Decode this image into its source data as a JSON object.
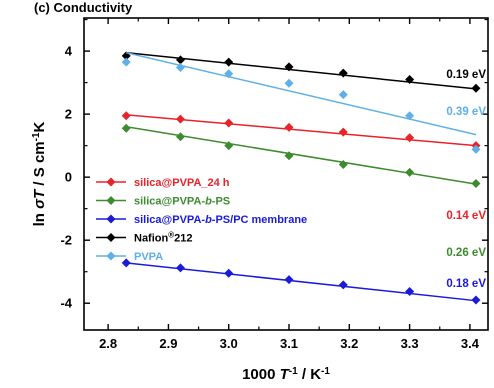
{
  "panel": {
    "label": "(c) Conductivity"
  },
  "chart_data": {
    "type": "scatter",
    "title": "",
    "xlabel": {
      "prefix": "1000 ",
      "var": "T",
      "sup": "-1",
      "suffix": " / K",
      "sup2": "-1"
    },
    "ylabel": {
      "prefix": "ln ",
      "var": "σT",
      "suffix": " / S cm",
      "sup": "-1",
      "suffix2": "K"
    },
    "xlim": [
      2.76,
      3.43
    ],
    "ylim": [
      -4.85,
      5.05
    ],
    "xticks": [
      "2.8",
      "2.9",
      "3.0",
      "3.1",
      "3.2",
      "3.3",
      "3.4"
    ],
    "xtick_values": [
      2.8,
      2.9,
      3.0,
      3.1,
      3.2,
      3.3,
      3.4
    ],
    "yticks": [
      "-4",
      "-2",
      "0",
      "2",
      "4"
    ],
    "ytick_values": [
      -4,
      -2,
      0,
      2,
      4
    ],
    "grid": false,
    "legend_position": "middle-left",
    "series": [
      {
        "name": "silica@PVPA_24 h",
        "color": "#e8232a",
        "marker": "diamond",
        "x": [
          2.83,
          2.92,
          3.0,
          3.1,
          3.19,
          3.3,
          3.41
        ],
        "y": [
          1.95,
          1.84,
          1.72,
          1.58,
          1.43,
          1.25,
          1.0
        ],
        "fit": {
          "x": [
            2.83,
            3.41
          ],
          "y": [
            1.98,
            1.0
          ]
        },
        "ea_label": "0.14 eV"
      },
      {
        "name": "silica@PVPA-b-PS",
        "name_parts": [
          [
            "silica@PVPA-",
            false
          ],
          [
            "b",
            true
          ],
          [
            "-PS",
            false
          ]
        ],
        "color": "#3d8b2e",
        "marker": "diamond",
        "x": [
          2.83,
          2.92,
          3.0,
          3.1,
          3.19,
          3.3,
          3.41
        ],
        "y": [
          1.55,
          1.28,
          1.0,
          0.68,
          0.4,
          0.15,
          -0.2
        ],
        "fit": {
          "x": [
            2.83,
            3.41
          ],
          "y": [
            1.6,
            -0.22
          ]
        },
        "ea_label": "0.26 eV"
      },
      {
        "name": "silica@PVPA-b-PS/PC membrane",
        "name_parts": [
          [
            "silica@PVPA-",
            false
          ],
          [
            "b",
            true
          ],
          [
            "-PS/PC membrane",
            false
          ]
        ],
        "color": "#1a1adb",
        "marker": "diamond",
        "x": [
          2.83,
          2.92,
          3.0,
          3.1,
          3.19,
          3.3,
          3.41
        ],
        "y": [
          -2.72,
          -2.88,
          -3.05,
          -3.25,
          -3.42,
          -3.63,
          -3.9
        ],
        "fit": {
          "x": [
            2.83,
            3.41
          ],
          "y": [
            -2.72,
            -3.92
          ]
        },
        "ea_label": "0.18 eV"
      },
      {
        "name": "Nafion®212",
        "name_parts": [
          [
            "Nafion",
            false
          ],
          [
            "®",
            false,
            "sup"
          ],
          [
            "212",
            false
          ]
        ],
        "color": "#000000",
        "marker": "diamond",
        "x": [
          2.83,
          2.92,
          3.0,
          3.1,
          3.19,
          3.3,
          3.41
        ],
        "y": [
          3.85,
          3.72,
          3.65,
          3.5,
          3.3,
          3.1,
          2.82
        ],
        "fit": {
          "x": [
            2.83,
            3.41
          ],
          "y": [
            3.95,
            2.8
          ]
        },
        "ea_label": "0.19 eV"
      },
      {
        "name": "PVPA",
        "color": "#5fb0e8",
        "marker": "diamond",
        "x": [
          2.83,
          2.92,
          3.0,
          3.1,
          3.19,
          3.3,
          3.41
        ],
        "y": [
          3.65,
          3.48,
          3.28,
          2.98,
          2.62,
          1.95,
          0.88
        ],
        "fit": {
          "x": [
            2.83,
            3.41
          ],
          "y": [
            3.95,
            1.35
          ]
        },
        "ea_label": "0.39 eV"
      }
    ]
  }
}
